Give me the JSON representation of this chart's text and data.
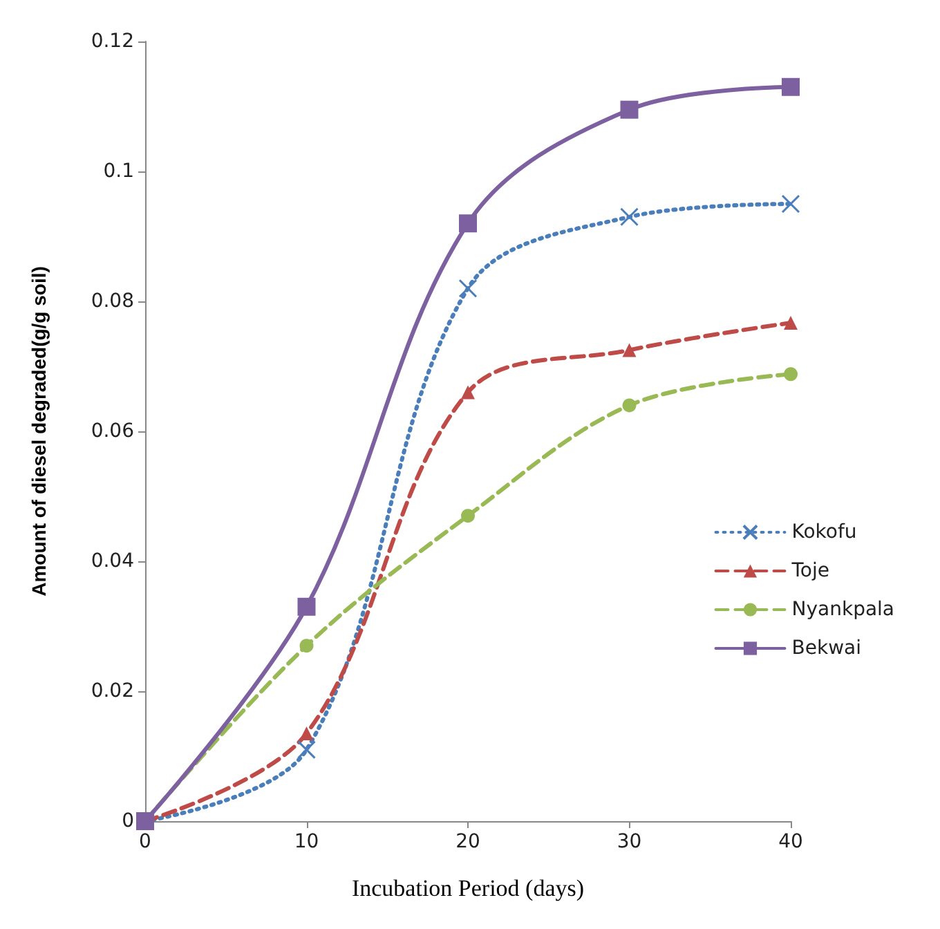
{
  "chart_data": {
    "type": "line",
    "xlabel": "Incubation Period (days)",
    "ylabel": "Amount of diesel degraded(g/g soil)",
    "x": [
      0,
      10,
      20,
      30,
      40
    ],
    "xlim": [
      0,
      40
    ],
    "xticks": [
      0,
      10,
      20,
      30,
      40
    ],
    "ylim": [
      0,
      0.12
    ],
    "yticks": [
      0,
      0.02,
      0.04,
      0.06,
      0.08,
      0.1,
      0.12
    ],
    "grid": false,
    "legend": "right",
    "series": [
      {
        "name": "Kokofu",
        "color": "#4a7ebb",
        "marker": "cross",
        "line_style": "dotted",
        "values": [
          0,
          0.011,
          0.082,
          0.093,
          0.095
        ]
      },
      {
        "name": "Toje",
        "color": "#be4b48",
        "marker": "triangle",
        "line_style": "dashed",
        "values": [
          0,
          0.0135,
          0.066,
          0.0725,
          0.0767
        ]
      },
      {
        "name": "Nyankpala",
        "color": "#98b954",
        "marker": "circle",
        "line_style": "dashed",
        "values": [
          0,
          0.027,
          0.047,
          0.064,
          0.0688
        ]
      },
      {
        "name": "Bekwai",
        "color": "#7d60a0",
        "marker": "square",
        "line_style": "solid",
        "values": [
          0,
          0.033,
          0.092,
          0.1095,
          0.113
        ]
      }
    ]
  }
}
